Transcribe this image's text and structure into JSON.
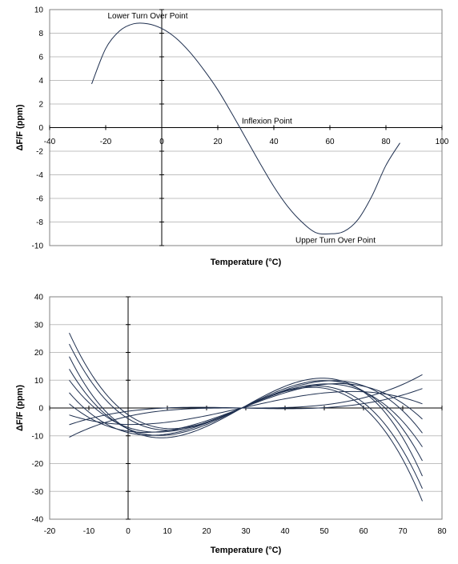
{
  "chart_data": [
    {
      "type": "line",
      "xlabel": "Temperature (°C)",
      "ylabel": "ΔF/F (ppm)",
      "xlim": [
        -40,
        100
      ],
      "ylim": [
        -10,
        10
      ],
      "x_ticks": [
        -40,
        -20,
        0,
        20,
        40,
        60,
        80,
        100
      ],
      "y_ticks": [
        -10,
        -8,
        -6,
        -4,
        -2,
        0,
        2,
        4,
        6,
        8,
        10
      ],
      "grid": "horizontal",
      "x_range": [
        -25,
        85
      ],
      "x": [
        -25,
        -20,
        -15,
        -10,
        -5,
        0,
        5,
        10,
        15,
        20,
        25,
        30,
        35,
        40,
        45,
        50,
        55,
        60,
        65,
        70,
        75,
        80,
        85
      ],
      "y": [
        3.7,
        6.7,
        8.2,
        8.8,
        8.8,
        8.4,
        7.6,
        6.4,
        4.9,
        3.2,
        1.2,
        -0.9,
        -3.0,
        -5.0,
        -6.7,
        -8.0,
        -8.9,
        -9.0,
        -8.8,
        -7.8,
        -5.8,
        -3.2,
        -1.3
      ],
      "annotations": [
        {
          "text": "Lower Turn Over Point",
          "x": -5,
          "y": 8.9
        },
        {
          "text": "Inflexion Point",
          "x": 28,
          "y": 0
        },
        {
          "text": "Upper Turn Over Point",
          "x": 62,
          "y": -9
        }
      ]
    },
    {
      "type": "line",
      "xlabel": "Temperature (°C)",
      "ylabel": "ΔF/F (ppm)",
      "xlim": [
        -20,
        80
      ],
      "ylim": [
        -40,
        40
      ],
      "x_ticks": [
        -20,
        -10,
        0,
        10,
        20,
        30,
        40,
        50,
        60,
        70,
        80
      ],
      "y_ticks": [
        -40,
        -30,
        -20,
        -10,
        0,
        10,
        20,
        30,
        40
      ],
      "grid": "horizontal",
      "x_range": [
        -15,
        75
      ],
      "x_inflexion": 29,
      "series": [
        {
          "values_at_ends": [
            27,
            -33.5
          ]
        },
        {
          "values_at_ends": [
            23,
            -29
          ]
        },
        {
          "values_at_ends": [
            18.5,
            -24.5
          ]
        },
        {
          "values_at_ends": [
            14,
            -19
          ]
        },
        {
          "values_at_ends": [
            10,
            -14
          ]
        },
        {
          "values_at_ends": [
            5.5,
            -9
          ]
        },
        {
          "values_at_ends": [
            1.5,
            -4
          ]
        },
        {
          "values_at_ends": [
            -2.5,
            1.5
          ]
        },
        {
          "values_at_ends": [
            -6,
            7
          ]
        },
        {
          "values_at_ends": [
            -10.5,
            12
          ]
        }
      ]
    }
  ]
}
